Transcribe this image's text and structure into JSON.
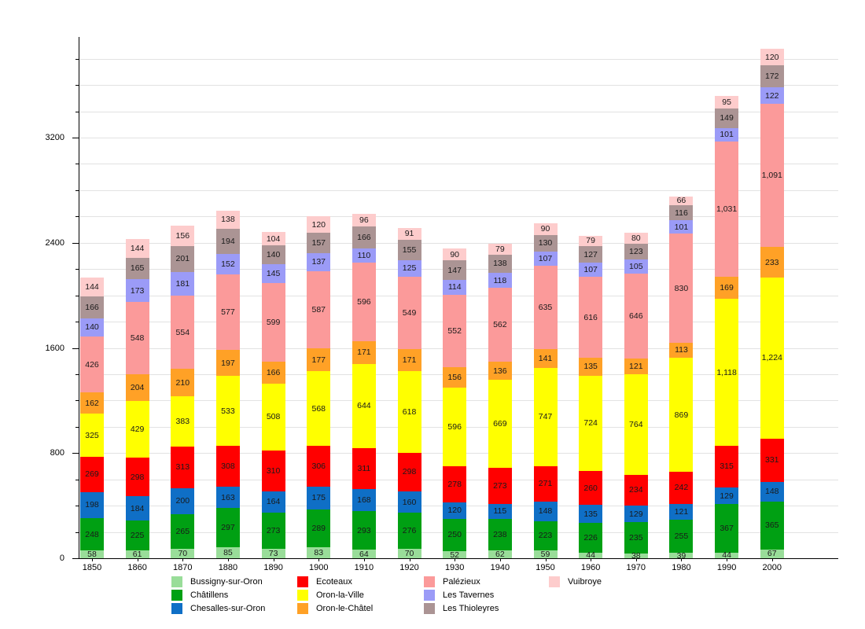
{
  "chart_data": {
    "type": "bar",
    "stacked": true,
    "title": "",
    "xlabel": "",
    "ylabel": "",
    "categories": [
      "1850",
      "1860",
      "1870",
      "1880",
      "1890",
      "1900",
      "1910",
      "1920",
      "1930",
      "1940",
      "1950",
      "1960",
      "1970",
      "1980",
      "1990",
      "2000"
    ],
    "series": [
      {
        "name": "Bussigny-sur-Oron",
        "color": "#99dd99",
        "values": [
          58,
          61,
          70,
          85,
          73,
          83,
          64,
          70,
          52,
          62,
          59,
          44,
          38,
          39,
          44,
          67
        ]
      },
      {
        "name": "Châtillens",
        "color": "#00a013",
        "values": [
          248,
          225,
          265,
          297,
          273,
          289,
          293,
          276,
          250,
          238,
          223,
          226,
          235,
          255,
          367,
          365
        ]
      },
      {
        "name": "Chesalles-sur-Oron",
        "color": "#0f6fc6",
        "values": [
          198,
          184,
          200,
          163,
          164,
          175,
          168,
          160,
          120,
          115,
          148,
          135,
          129,
          121,
          129,
          148
        ]
      },
      {
        "name": "Ecoteaux",
        "color": "#ff0000",
        "values": [
          269,
          298,
          313,
          308,
          310,
          306,
          311,
          298,
          278,
          273,
          271,
          260,
          234,
          242,
          315,
          331
        ]
      },
      {
        "name": "Oron-la-Ville",
        "color": "#ffff00",
        "values": [
          325,
          429,
          383,
          533,
          508,
          568,
          644,
          618,
          596,
          669,
          747,
          724,
          764,
          869,
          1118,
          1224
        ]
      },
      {
        "name": "Oron-le-Châtel",
        "color": "#ffa126",
        "values": [
          162,
          204,
          210,
          197,
          166,
          177,
          171,
          171,
          156,
          136,
          141,
          135,
          121,
          113,
          169,
          233
        ]
      },
      {
        "name": "Palézieux",
        "color": "#fb9a9a",
        "values": [
          426,
          548,
          554,
          577,
          599,
          587,
          596,
          549,
          552,
          562,
          635,
          616,
          646,
          830,
          1031,
          1091
        ]
      },
      {
        "name": "Les Tavernes",
        "color": "#9b9bf7",
        "values": [
          140,
          173,
          181,
          152,
          145,
          137,
          110,
          125,
          114,
          118,
          107,
          107,
          105,
          101,
          101,
          122
        ]
      },
      {
        "name": "Les Thioleyres",
        "color": "#ab9494",
        "values": [
          166,
          165,
          201,
          194,
          140,
          157,
          166,
          155,
          147,
          138,
          130,
          127,
          123,
          116,
          149,
          172
        ]
      },
      {
        "name": "Vuibroye",
        "color": "#fdcccc",
        "values": [
          144,
          144,
          156,
          138,
          104,
          120,
          96,
          91,
          90,
          79,
          90,
          79,
          80,
          66,
          95,
          120
        ]
      }
    ],
    "ylim": [
      0,
      3966
    ],
    "yticks_labeled": [
      0,
      800,
      1600,
      2400,
      3200
    ],
    "grid_step": 200,
    "grid": true,
    "legend_position": "bottom",
    "legend_columns": [
      [
        "Bussigny-sur-Oron",
        "Châtillens",
        "Chesalles-sur-Oron"
      ],
      [
        "Ecoteaux",
        "Oron-la-Ville",
        "Oron-le-Châtel"
      ],
      [
        "Palézieux",
        "Les Tavernes",
        "Les Thioleyres"
      ],
      [
        "Vuibroye"
      ]
    ]
  }
}
